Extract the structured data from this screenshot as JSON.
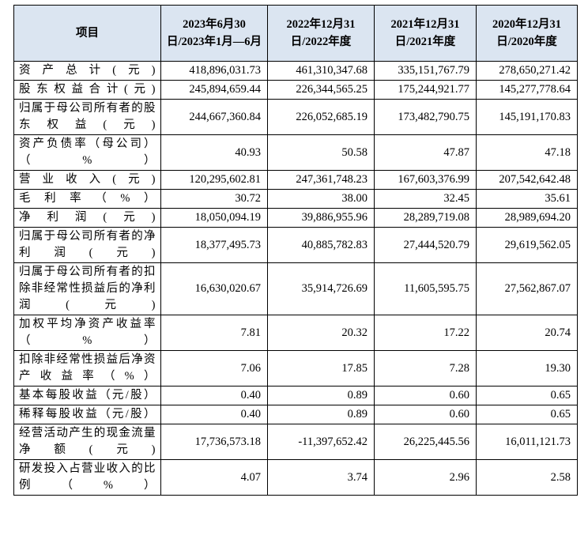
{
  "header": {
    "item": "项目",
    "col1": "2023年6月30日/2023年1月—6月",
    "col2": "2022年12月31日/2022年度",
    "col3": "2021年12月31日/2021年度",
    "col4": "2020年12月31日/2020年度"
  },
  "rows": [
    {
      "label": "资产总计(元)",
      "v1": "418,896,031.73",
      "v2": "461,310,347.68",
      "v3": "335,151,767.79",
      "v4": "278,650,271.42"
    },
    {
      "label": "股东权益合计(元)",
      "v1": "245,894,659.44",
      "v2": "226,344,565.25",
      "v3": "175,244,921.77",
      "v4": "145,277,778.64"
    },
    {
      "label": "归属于母公司所有者的股东权益(元)",
      "v1": "244,667,360.84",
      "v2": "226,052,685.19",
      "v3": "173,482,790.75",
      "v4": "145,191,170.83"
    },
    {
      "label": "资产负债率（母公司）（%）",
      "v1": "40.93",
      "v2": "50.58",
      "v3": "47.87",
      "v4": "47.18"
    },
    {
      "label": "营业收入(元)",
      "v1": "120,295,602.81",
      "v2": "247,361,748.23",
      "v3": "167,603,376.99",
      "v4": "207,542,642.48"
    },
    {
      "label": "毛利率（%）",
      "v1": "30.72",
      "v2": "38.00",
      "v3": "32.45",
      "v4": "35.61"
    },
    {
      "label": "净利润(元)",
      "v1": "18,050,094.19",
      "v2": "39,886,955.96",
      "v3": "28,289,719.08",
      "v4": "28,989,694.20"
    },
    {
      "label": "归属于母公司所有者的净利润(元)",
      "v1": "18,377,495.73",
      "v2": "40,885,782.83",
      "v3": "27,444,520.79",
      "v4": "29,619,562.05"
    },
    {
      "label": "归属于母公司所有者的扣除非经常性损益后的净利润(元)",
      "v1": "16,630,020.67",
      "v2": "35,914,726.69",
      "v3": "11,605,595.75",
      "v4": "27,562,867.07"
    },
    {
      "label": "加权平均净资产收益率（%）",
      "v1": "7.81",
      "v2": "20.32",
      "v3": "17.22",
      "v4": "20.74"
    },
    {
      "label": "扣除非经常性损益后净资产收益率（%）",
      "v1": "7.06",
      "v2": "17.85",
      "v3": "7.28",
      "v4": "19.30"
    },
    {
      "label": "基本每股收益（元/股）",
      "v1": "0.40",
      "v2": "0.89",
      "v3": "0.60",
      "v4": "0.65"
    },
    {
      "label": "稀释每股收益（元/股）",
      "v1": "0.40",
      "v2": "0.89",
      "v3": "0.60",
      "v4": "0.65"
    },
    {
      "label": "经营活动产生的现金流量净额(元)",
      "v1": "17,736,573.18",
      "v2": "-11,397,652.42",
      "v3": "26,225,445.56",
      "v4": "16,011,121.73"
    },
    {
      "label": "研发投入占营业收入的比例（%）",
      "v1": "4.07",
      "v2": "3.74",
      "v3": "2.96",
      "v4": "2.58"
    }
  ]
}
